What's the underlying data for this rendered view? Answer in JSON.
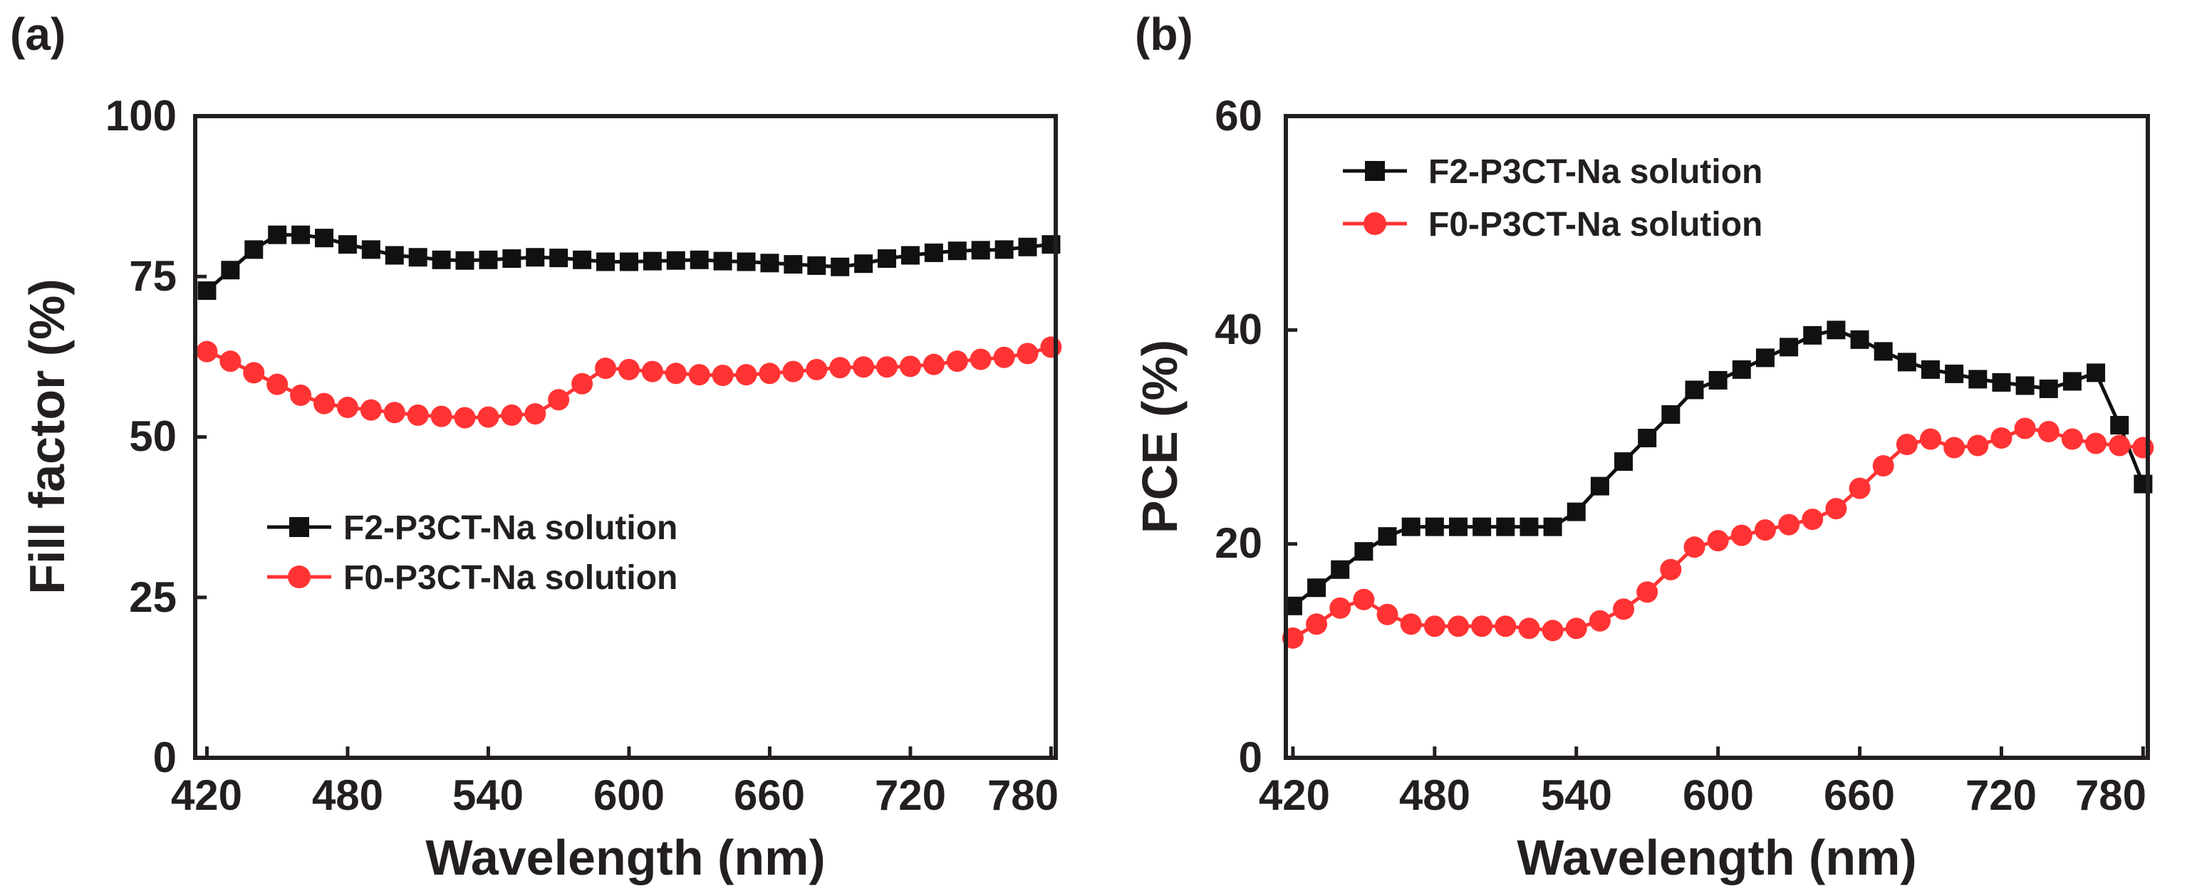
{
  "chart_data": [
    {
      "type": "line",
      "panel_label": "(a)",
      "title": "",
      "xlabel": "Wavelength (nm)",
      "ylabel": "Fill factor (%)",
      "xlim": [
        415,
        782
      ],
      "ylim": [
        0,
        100
      ],
      "xticks": [
        "420",
        "480",
        "540",
        "600",
        "660",
        "720",
        "780"
      ],
      "yticks": [
        "0",
        "25",
        "50",
        "75",
        "100"
      ],
      "grid": false,
      "legend_position": "lower-left",
      "series": [
        {
          "name": "F2-P3CT-Na solution",
          "color": "#111111",
          "marker": "square",
          "x": [
            420,
            430,
            440,
            450,
            460,
            470,
            480,
            490,
            500,
            510,
            520,
            530,
            540,
            550,
            560,
            570,
            580,
            590,
            600,
            610,
            620,
            630,
            640,
            650,
            660,
            670,
            680,
            690,
            700,
            710,
            720,
            730,
            740,
            750,
            760,
            770,
            780
          ],
          "y": [
            72.8,
            76.0,
            79.2,
            81.5,
            81.5,
            81.0,
            80.0,
            79.2,
            78.3,
            78.0,
            77.6,
            77.5,
            77.6,
            77.8,
            78.0,
            77.9,
            77.6,
            77.3,
            77.3,
            77.4,
            77.5,
            77.6,
            77.4,
            77.3,
            77.1,
            76.9,
            76.7,
            76.5,
            77.0,
            77.8,
            78.3,
            78.7,
            79.0,
            79.1,
            79.2,
            79.6,
            80.0
          ]
        },
        {
          "name": "F0-P3CT-Na solution",
          "color": "#ff3333",
          "marker": "circle",
          "x": [
            420,
            430,
            440,
            450,
            460,
            470,
            480,
            490,
            500,
            510,
            520,
            530,
            540,
            550,
            560,
            570,
            580,
            590,
            600,
            610,
            620,
            630,
            640,
            650,
            660,
            670,
            680,
            690,
            700,
            710,
            720,
            730,
            740,
            750,
            760,
            770,
            780
          ],
          "y": [
            63.3,
            61.8,
            60.0,
            58.2,
            56.5,
            55.2,
            54.6,
            54.2,
            53.8,
            53.4,
            53.2,
            53.0,
            53.1,
            53.4,
            53.6,
            55.8,
            58.3,
            60.7,
            60.5,
            60.2,
            59.9,
            59.7,
            59.6,
            59.7,
            59.9,
            60.2,
            60.5,
            60.8,
            60.9,
            60.9,
            61.0,
            61.3,
            61.8,
            62.1,
            62.4,
            63.0,
            64.0
          ]
        }
      ]
    },
    {
      "type": "line",
      "panel_label": "(b)",
      "title": "",
      "xlabel": "Wavelength (nm)",
      "ylabel": "PCE (%)",
      "xlim": [
        417,
        782
      ],
      "ylim": [
        0,
        60
      ],
      "xticks": [
        "420",
        "480",
        "540",
        "600",
        "660",
        "720",
        "780"
      ],
      "yticks": [
        "0",
        "20",
        "40",
        "60"
      ],
      "grid": false,
      "legend_position": "top-left",
      "series": [
        {
          "name": "F2-P3CT-Na solution",
          "color": "#111111",
          "marker": "square",
          "x": [
            420,
            430,
            440,
            450,
            460,
            470,
            480,
            490,
            500,
            510,
            520,
            530,
            540,
            550,
            560,
            570,
            580,
            590,
            600,
            610,
            620,
            630,
            640,
            650,
            660,
            670,
            680,
            690,
            700,
            710,
            720,
            730,
            740,
            750,
            760,
            770,
            780
          ],
          "y": [
            14.2,
            15.9,
            17.6,
            19.3,
            20.7,
            21.6,
            21.6,
            21.6,
            21.6,
            21.6,
            21.6,
            21.6,
            23.0,
            25.4,
            27.7,
            29.9,
            32.1,
            34.4,
            35.3,
            36.3,
            37.4,
            38.4,
            39.5,
            40.0,
            39.1,
            38.0,
            37.0,
            36.3,
            35.9,
            35.4,
            35.1,
            34.8,
            34.5,
            35.2,
            36.0,
            31.1,
            25.6
          ]
        },
        {
          "name": "F0-P3CT-Na solution",
          "color": "#ff3333",
          "marker": "circle",
          "x": [
            420,
            430,
            440,
            450,
            460,
            470,
            480,
            490,
            500,
            510,
            520,
            530,
            540,
            550,
            560,
            570,
            580,
            590,
            600,
            610,
            620,
            630,
            640,
            650,
            660,
            670,
            680,
            690,
            700,
            710,
            720,
            730,
            740,
            750,
            760,
            770,
            780
          ],
          "y": [
            11.2,
            12.5,
            14.0,
            14.8,
            13.4,
            12.5,
            12.3,
            12.3,
            12.3,
            12.3,
            12.1,
            11.9,
            12.1,
            12.8,
            13.9,
            15.5,
            17.6,
            19.7,
            20.3,
            20.8,
            21.3,
            21.8,
            22.3,
            23.3,
            25.2,
            27.3,
            29.3,
            29.8,
            29.0,
            29.2,
            29.9,
            30.8,
            30.5,
            29.8,
            29.4,
            29.2,
            29.0
          ]
        }
      ]
    }
  ]
}
